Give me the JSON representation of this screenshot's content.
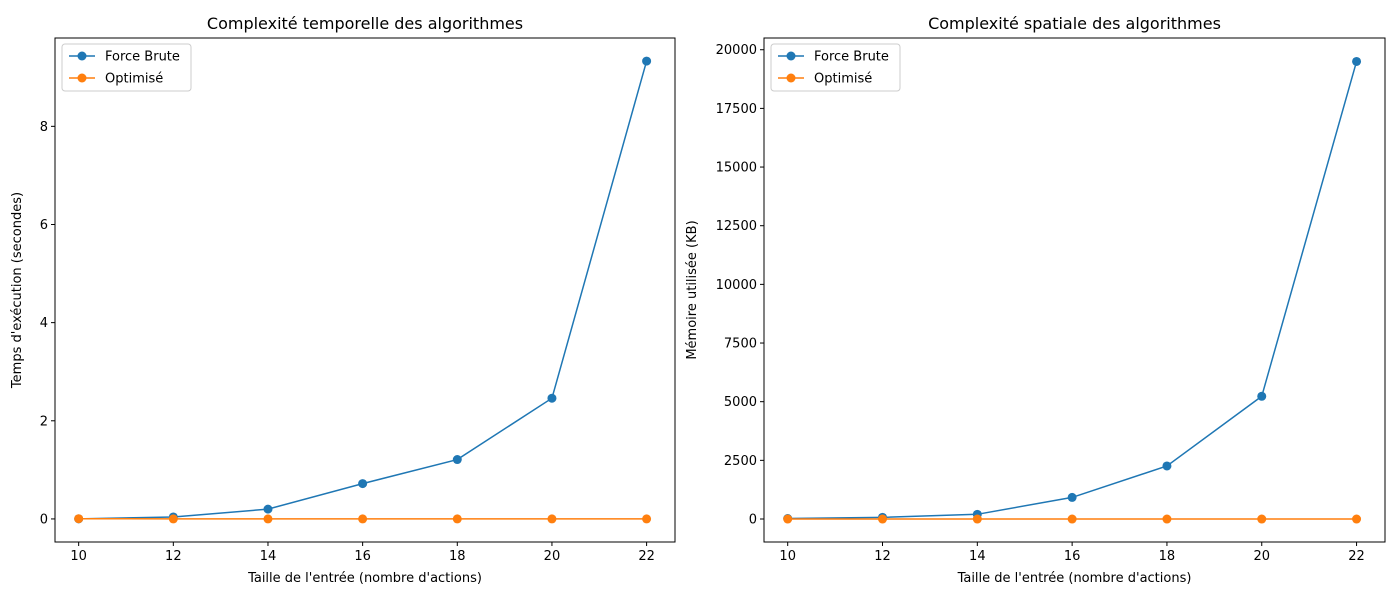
{
  "chart_data": [
    {
      "type": "line",
      "title": "Complexité temporelle des algorithmes",
      "xlabel": "Taille de l'entrée (nombre d'actions)",
      "ylabel": "Temps d'exécution (secondes)",
      "x": [
        10,
        12,
        14,
        16,
        18,
        20,
        22
      ],
      "xlim": [
        9.5,
        22.6
      ],
      "ylim": [
        -0.47,
        9.8
      ],
      "xticks": [
        10,
        12,
        14,
        16,
        18,
        20,
        22
      ],
      "yticks": [
        0,
        2,
        4,
        6,
        8
      ],
      "grid": false,
      "legend_position": "top-left",
      "series": [
        {
          "name": "Force Brute",
          "color": "#1f77b4",
          "values": [
            0.002,
            0.04,
            0.2,
            0.72,
            1.21,
            2.46,
            9.33
          ]
        },
        {
          "name": "Optimisé",
          "color": "#ff7f0e",
          "values": [
            0.005,
            0.001,
            0.001,
            0.001,
            0.001,
            0.001,
            0.001
          ]
        }
      ]
    },
    {
      "type": "line",
      "title": "Complexité spatiale des algorithmes",
      "xlabel": "Taille de l'entrée (nombre d'actions)",
      "ylabel": "Mémoire utilisée (KB)",
      "x": [
        10,
        12,
        14,
        16,
        18,
        20,
        22
      ],
      "xlim": [
        9.5,
        22.6
      ],
      "ylim": [
        -980,
        20500
      ],
      "xticks": [
        10,
        12,
        14,
        16,
        18,
        20,
        22
      ],
      "yticks": [
        0,
        2500,
        5000,
        7500,
        10000,
        12500,
        15000,
        17500,
        20000
      ],
      "grid": false,
      "legend_position": "top-left",
      "series": [
        {
          "name": "Force Brute",
          "color": "#1f77b4",
          "values": [
            20,
            70,
            200,
            920,
            2260,
            5230,
            19500
          ]
        },
        {
          "name": "Optimisé",
          "color": "#ff7f0e",
          "values": [
            0,
            0,
            0,
            0,
            0,
            0,
            0
          ]
        }
      ]
    }
  ]
}
